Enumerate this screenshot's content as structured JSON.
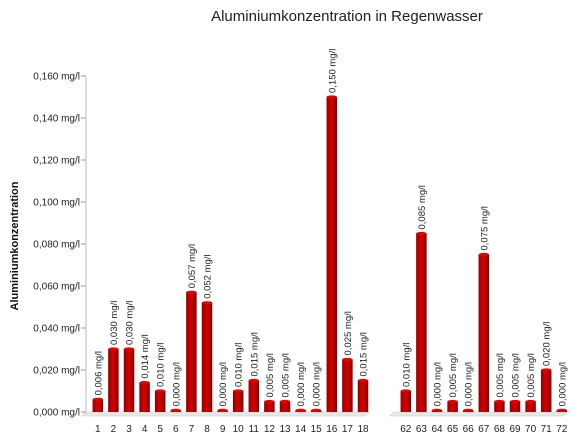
{
  "chart_data": {
    "type": "bar",
    "title": "Aluminiumkonzentration in Regenwasser",
    "ylabel": "Aluminiumkonzentration",
    "xlabel": "",
    "ylim": [
      0,
      0.16
    ],
    "yticks": [
      "0,000 mg/l",
      "0,020 mg/l",
      "0,040 mg/l",
      "0,060 mg/l",
      "0,080 mg/l",
      "0,100 mg/l",
      "0,120 mg/l",
      "0,140 mg/l",
      "0,160 mg/l"
    ],
    "grid": false,
    "bar_color": "#c00000",
    "panels": [
      {
        "categories": [
          "1",
          "2",
          "3",
          "4",
          "5",
          "6",
          "7",
          "8",
          "9",
          "10",
          "11",
          "12",
          "13",
          "14",
          "15",
          "16",
          "17",
          "18"
        ],
        "values": [
          0.006,
          0.03,
          0.03,
          0.014,
          0.01,
          0.0,
          0.057,
          0.052,
          0.0,
          0.01,
          0.015,
          0.005,
          0.005,
          0.0,
          0.0,
          0.15,
          0.025,
          0.015
        ],
        "labels": [
          "0,006 mg/l",
          "0,030 mg/l",
          "0,030 mg/l",
          "0,014 mg/l",
          "0,010 mg/l",
          "0,000 mg/l",
          "0,057 mg/l",
          "0,052 mg/l",
          "0,000 mg/l",
          "0,010 mg/l",
          "0,015 mg/l",
          "0,005 mg/l",
          "0,005 mg/l",
          "0,000 mg/l",
          "0,000 mg/l",
          "0,150 mg/l",
          "0,025 mg/l",
          "0,015 mg/l"
        ]
      },
      {
        "categories": [
          "62",
          "63",
          "64",
          "65",
          "66",
          "67",
          "68",
          "69",
          "70",
          "71",
          "72"
        ],
        "values": [
          0.01,
          0.085,
          0.0,
          0.005,
          0.0,
          0.075,
          0.005,
          0.005,
          0.005,
          0.02,
          0.0
        ],
        "labels": [
          "0,010 mg/l",
          "0,085 mg/l",
          "0,000 mg/l",
          "0,005 mg/l",
          "0,000 mg/l",
          "0,075 mg/l",
          "0,005 mg/l",
          "0,005 mg/l",
          "0,005 mg/l",
          "0,020 mg/l",
          "0,000 mg/l"
        ]
      }
    ]
  }
}
